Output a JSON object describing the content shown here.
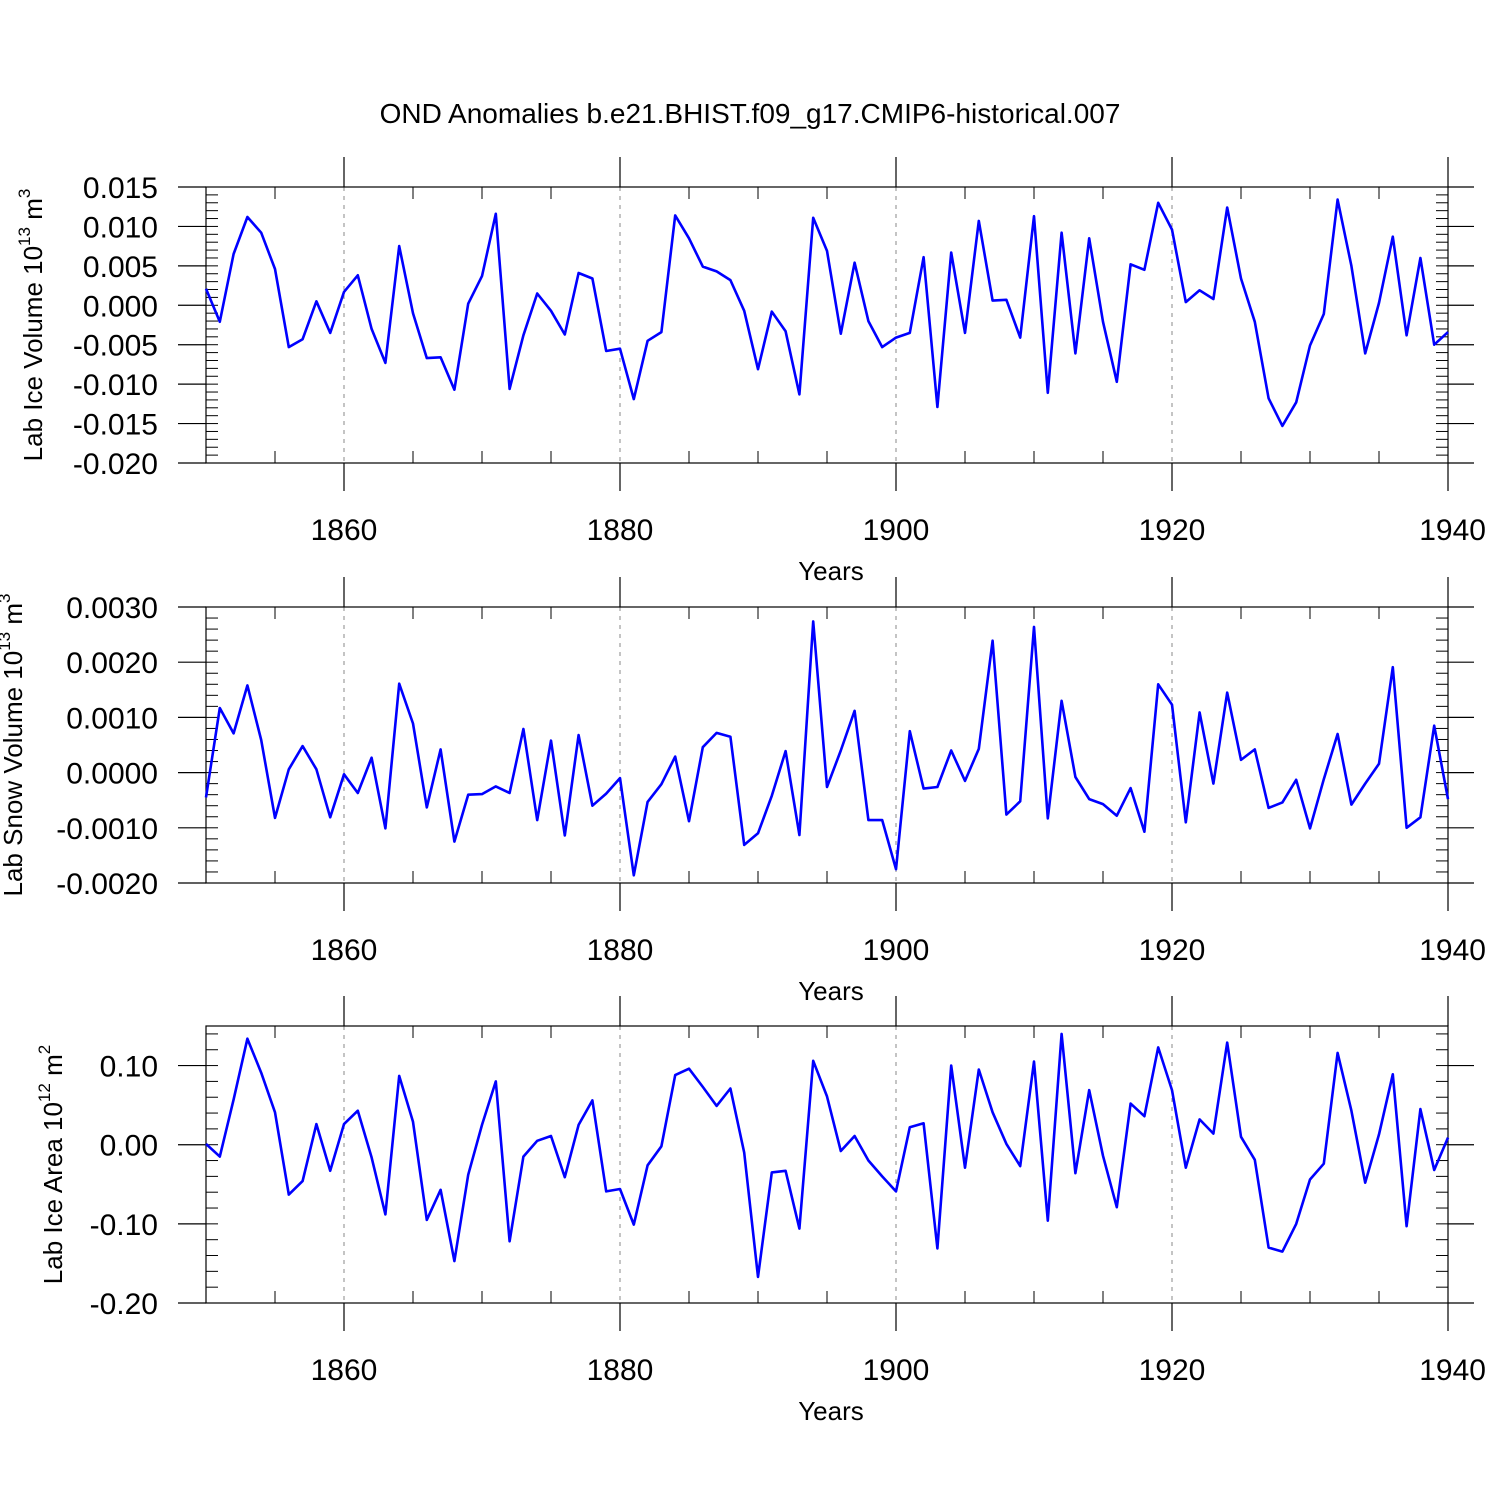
{
  "figure_title": "OND Anomalies b.e21.BHIST.f09_g17.CMIP6-historical.007",
  "colors": {
    "series": "#0000ff",
    "axes": "#000000",
    "grid": "#888888"
  },
  "chart_data": [
    {
      "type": "line",
      "xlabel": "Years",
      "ylabel": {
        "text": "Lab Ice Volume 10",
        "exp": "13",
        "unit": " m",
        "unit_exp": "3"
      },
      "xlim": [
        1850,
        1940
      ],
      "ylim": [
        -0.02,
        0.015
      ],
      "xticks": [
        1860,
        1880,
        1900,
        1920,
        1940
      ],
      "xtick_labels": [
        "1860",
        "1880",
        "1900",
        "1920",
        "1940"
      ],
      "yticks": [
        0.015,
        0.01,
        0.005,
        0.0,
        -0.005,
        -0.01,
        -0.015,
        -0.02
      ],
      "ytick_labels": [
        "0.015",
        "0.010",
        "0.005",
        "0.000",
        "-0.005",
        "-0.010",
        "-0.015",
        "-0.020"
      ],
      "grid": "vertical dashed at major x ticks",
      "series": [
        {
          "color": "#0000ff",
          "x": [
            1850,
            1851,
            1852,
            1853,
            1854,
            1855,
            1856,
            1857,
            1858,
            1859,
            1860,
            1861,
            1862,
            1863,
            1864,
            1865,
            1866,
            1867,
            1868,
            1869,
            1870,
            1871,
            1872,
            1873,
            1874,
            1875,
            1876,
            1877,
            1878,
            1879,
            1880,
            1881,
            1882,
            1883,
            1884,
            1885,
            1886,
            1887,
            1888,
            1889,
            1890,
            1891,
            1892,
            1893,
            1894,
            1895,
            1896,
            1897,
            1898,
            1899,
            1900,
            1901,
            1902,
            1903,
            1904,
            1905,
            1906,
            1907,
            1908,
            1909,
            1910,
            1911,
            1912,
            1913,
            1914,
            1915,
            1916,
            1917,
            1918,
            1919,
            1920,
            1921,
            1922,
            1923,
            1924,
            1925,
            1926,
            1927,
            1928,
            1929,
            1930,
            1931,
            1932,
            1933,
            1934,
            1935,
            1936,
            1937,
            1938,
            1939,
            1940
          ],
          "values": [
            0.0021,
            -0.0021,
            0.0065,
            0.0112,
            0.0092,
            0.0046,
            -0.0053,
            -0.0043,
            0.0005,
            -0.0035,
            0.0017,
            0.0038,
            -0.003,
            -0.0073,
            0.0075,
            -0.001,
            -0.0067,
            -0.0066,
            -0.0107,
            0.0002,
            0.0037,
            0.0116,
            -0.0106,
            -0.0038,
            0.0015,
            -0.0007,
            -0.0037,
            0.0041,
            0.0034,
            -0.0058,
            -0.0055,
            -0.0119,
            -0.0045,
            -0.0034,
            0.0114,
            0.0085,
            0.0049,
            0.0043,
            0.0032,
            -0.0007,
            -0.0081,
            -0.0008,
            -0.0033,
            -0.0113,
            0.0111,
            0.0069,
            -0.0036,
            0.0054,
            -0.002,
            -0.0053,
            -0.0041,
            -0.0035,
            0.0061,
            -0.0129,
            0.0067,
            -0.0035,
            0.0107,
            0.0006,
            0.0007,
            -0.0041,
            0.0113,
            -0.0111,
            0.0092,
            -0.0061,
            0.0085,
            -0.0021,
            -0.0097,
            0.0052,
            0.0045,
            0.013,
            0.0096,
            0.0004,
            0.0019,
            0.0008,
            0.0124,
            0.0034,
            -0.0021,
            -0.0118,
            -0.0153,
            -0.0123,
            -0.0051,
            -0.0011,
            0.0134,
            0.005,
            -0.0061,
            0.0003,
            0.0087,
            -0.0038,
            0.006,
            -0.005,
            -0.0034
          ]
        }
      ]
    },
    {
      "type": "line",
      "xlabel": "Years",
      "ylabel": {
        "text": "Lab Snow Volume 10",
        "exp": "13",
        "unit": " m",
        "unit_exp": "3"
      },
      "xlim": [
        1850,
        1940
      ],
      "ylim": [
        -0.002,
        0.003
      ],
      "xticks": [
        1860,
        1880,
        1900,
        1920,
        1940
      ],
      "xtick_labels": [
        "1860",
        "1880",
        "1900",
        "1920",
        "1940"
      ],
      "yticks": [
        0.003,
        0.002,
        0.001,
        0.0,
        -0.001,
        -0.002
      ],
      "ytick_labels": [
        "0.0030",
        "0.0020",
        "0.0010",
        "0.0000",
        "-0.0010",
        "-0.0020"
      ],
      "grid": "vertical dashed at major x ticks",
      "series": [
        {
          "color": "#0000ff",
          "x": [
            1850,
            1851,
            1852,
            1853,
            1854,
            1855,
            1856,
            1857,
            1858,
            1859,
            1860,
            1861,
            1862,
            1863,
            1864,
            1865,
            1866,
            1867,
            1868,
            1869,
            1870,
            1871,
            1872,
            1873,
            1874,
            1875,
            1876,
            1877,
            1878,
            1879,
            1880,
            1881,
            1882,
            1883,
            1884,
            1885,
            1886,
            1887,
            1888,
            1889,
            1890,
            1891,
            1892,
            1893,
            1894,
            1895,
            1896,
            1897,
            1898,
            1899,
            1900,
            1901,
            1902,
            1903,
            1904,
            1905,
            1906,
            1907,
            1908,
            1909,
            1910,
            1911,
            1912,
            1913,
            1914,
            1915,
            1916,
            1917,
            1918,
            1919,
            1920,
            1921,
            1922,
            1923,
            1924,
            1925,
            1926,
            1927,
            1928,
            1929,
            1930,
            1931,
            1932,
            1933,
            1934,
            1935,
            1936,
            1937,
            1938,
            1939,
            1940
          ],
          "values": [
            -0.00045,
            0.00117,
            0.00071,
            0.00158,
            0.00059,
            -0.00082,
            6e-05,
            0.00048,
            6e-05,
            -0.00081,
            -3e-05,
            -0.00037,
            0.00027,
            -0.00101,
            0.00161,
            0.00089,
            -0.00063,
            0.00042,
            -0.00125,
            -0.0004,
            -0.00039,
            -0.00025,
            -0.00037,
            0.00079,
            -0.00086,
            0.00058,
            -0.00114,
            0.00068,
            -0.0006,
            -0.00038,
            -0.0001,
            -0.00186,
            -0.00053,
            -0.00021,
            0.00029,
            -0.00088,
            0.00046,
            0.00072,
            0.00065,
            -0.00131,
            -0.0011,
            -0.00042,
            0.00039,
            -0.00113,
            0.00274,
            -0.00026,
            0.0004,
            0.00112,
            -0.00086,
            -0.00086,
            -0.00175,
            0.00075,
            -0.00029,
            -0.00026,
            0.0004,
            -0.00015,
            0.00043,
            0.00239,
            -0.00076,
            -0.00052,
            0.00264,
            -0.00083,
            0.0013,
            -8e-05,
            -0.00048,
            -0.00057,
            -0.00078,
            -0.00028,
            -0.00107,
            0.0016,
            0.00123,
            -0.0009,
            0.00109,
            -0.0002,
            0.00145,
            0.00023,
            0.00042,
            -0.00064,
            -0.00054,
            -0.00013,
            -0.00101,
            -0.00012,
            0.0007,
            -0.00058,
            -0.0002,
            0.00016,
            0.00191,
            -0.001,
            -0.00081,
            0.00085,
            -0.00048
          ]
        }
      ]
    },
    {
      "type": "line",
      "xlabel": "Years",
      "ylabel": {
        "text": "Lab Ice Area 10",
        "exp": "12",
        "unit": " m",
        "unit_exp": "2"
      },
      "xlim": [
        1850,
        1940
      ],
      "ylim": [
        -0.2,
        0.15
      ],
      "xticks": [
        1860,
        1880,
        1900,
        1920,
        1940
      ],
      "xtick_labels": [
        "1860",
        "1880",
        "1900",
        "1920",
        "1940"
      ],
      "yticks": [
        0.1,
        0.0,
        -0.1,
        -0.2
      ],
      "ytick_labels": [
        "0.10",
        "0.00",
        "-0.10",
        "-0.20"
      ],
      "grid": "vertical dashed at major x ticks",
      "series": [
        {
          "color": "#0000ff",
          "x": [
            1850,
            1851,
            1852,
            1853,
            1854,
            1855,
            1856,
            1857,
            1858,
            1859,
            1860,
            1861,
            1862,
            1863,
            1864,
            1865,
            1866,
            1867,
            1868,
            1869,
            1870,
            1871,
            1872,
            1873,
            1874,
            1875,
            1876,
            1877,
            1878,
            1879,
            1880,
            1881,
            1882,
            1883,
            1884,
            1885,
            1886,
            1887,
            1888,
            1889,
            1890,
            1891,
            1892,
            1893,
            1894,
            1895,
            1896,
            1897,
            1898,
            1899,
            1900,
            1901,
            1902,
            1903,
            1904,
            1905,
            1906,
            1907,
            1908,
            1909,
            1910,
            1911,
            1912,
            1913,
            1914,
            1915,
            1916,
            1917,
            1918,
            1919,
            1920,
            1921,
            1922,
            1923,
            1924,
            1925,
            1926,
            1927,
            1928,
            1929,
            1930,
            1931,
            1932,
            1933,
            1934,
            1935,
            1936,
            1937,
            1938,
            1939,
            1940
          ],
          "values": [
            0.001,
            -0.015,
            0.057,
            0.134,
            0.091,
            0.041,
            -0.063,
            -0.046,
            0.026,
            -0.033,
            0.026,
            0.043,
            -0.016,
            -0.088,
            0.087,
            0.029,
            -0.095,
            -0.057,
            -0.147,
            -0.038,
            0.025,
            0.08,
            -0.122,
            -0.015,
            0.005,
            0.011,
            -0.041,
            0.025,
            0.056,
            -0.059,
            -0.056,
            -0.101,
            -0.026,
            -0.002,
            0.088,
            0.096,
            0.073,
            0.049,
            0.071,
            -0.01,
            -0.167,
            -0.035,
            -0.033,
            -0.106,
            0.106,
            0.061,
            -0.008,
            0.011,
            -0.02,
            -0.04,
            -0.059,
            0.022,
            0.027,
            -0.131,
            0.1,
            -0.029,
            0.095,
            0.041,
            0.001,
            -0.027,
            0.105,
            -0.096,
            0.14,
            -0.036,
            0.069,
            -0.014,
            -0.079,
            0.052,
            0.036,
            0.123,
            0.069,
            -0.029,
            0.032,
            0.014,
            0.129,
            0.01,
            -0.019,
            -0.13,
            -0.135,
            -0.1,
            -0.044,
            -0.024,
            0.116,
            0.043,
            -0.048,
            0.013,
            0.089,
            -0.103,
            0.045,
            -0.032,
            0.009
          ]
        }
      ]
    }
  ]
}
